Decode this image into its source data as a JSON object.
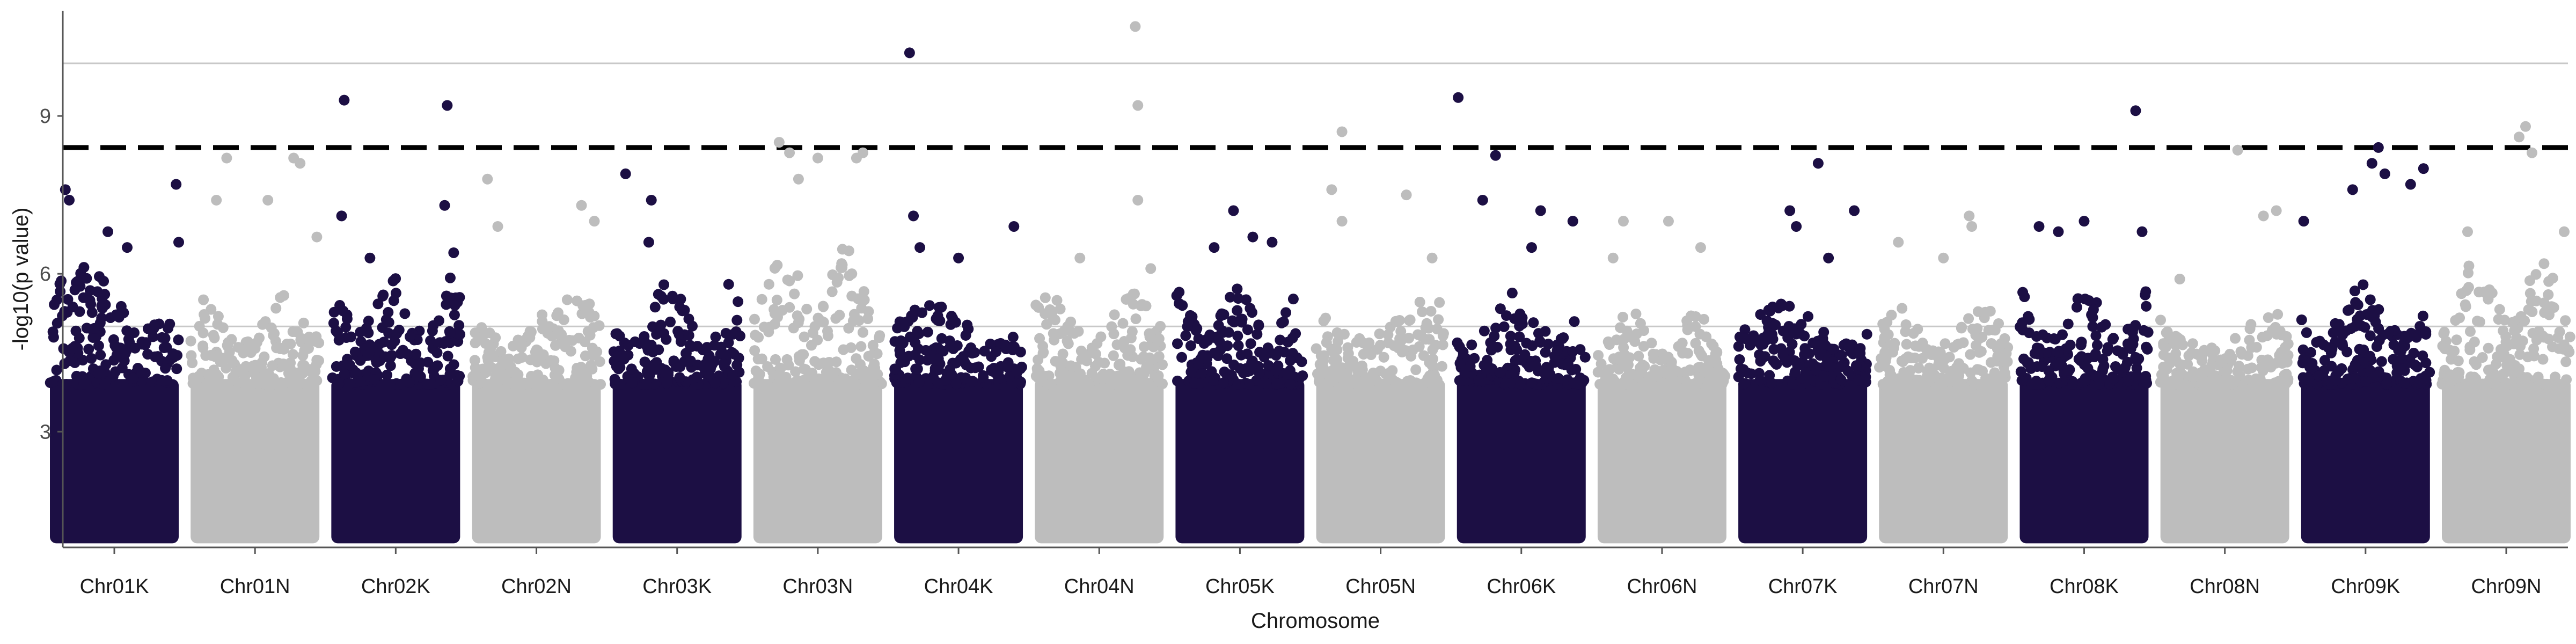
{
  "chart_data": {
    "type": "scatter",
    "subtype": "manhattan",
    "title": "",
    "xlabel": "Chromosome",
    "ylabel": "-log10(p value)",
    "ylim": [
      0.8,
      11.0
    ],
    "yticks": [
      3,
      6,
      9
    ],
    "grid": false,
    "legend": "none",
    "reference_lines": [
      {
        "kind": "significance-threshold",
        "y": 8.4,
        "style": "dashed",
        "color": "#000000"
      },
      {
        "kind": "horizontal-line",
        "y": 10.0,
        "style": "solid",
        "color": "#c8c8c8"
      },
      {
        "kind": "horizontal-line",
        "y": 5.0,
        "style": "solid",
        "color": "#c8c8c8"
      }
    ],
    "colors": {
      "K": "#1c0f44",
      "N": "#bdbdbd"
    },
    "categories": [
      "Chr01K",
      "Chr01N",
      "Chr02K",
      "Chr02N",
      "Chr03K",
      "Chr03N",
      "Chr04K",
      "Chr04N",
      "Chr05K",
      "Chr05N",
      "Chr06K",
      "Chr06N",
      "Chr07K",
      "Chr07N",
      "Chr08K",
      "Chr08N",
      "Chr09K",
      "Chr09N"
    ],
    "series": [
      {
        "chromosome": "Chr01K",
        "bulk_max": 6.2,
        "peaks": [
          [
            0.12,
            7.6
          ],
          [
            0.15,
            7.4
          ],
          [
            0.45,
            6.8
          ],
          [
            0.98,
            7.7
          ],
          [
            1.0,
            6.6
          ],
          [
            0.6,
            6.5
          ]
        ]
      },
      {
        "chromosome": "Chr01N",
        "bulk_max": 5.6,
        "peaks": [
          [
            0.28,
            8.2
          ],
          [
            0.2,
            7.4
          ],
          [
            0.6,
            7.4
          ],
          [
            0.8,
            8.2
          ],
          [
            0.85,
            8.1
          ],
          [
            0.98,
            6.7
          ]
        ]
      },
      {
        "chromosome": "Chr02K",
        "bulk_max": 6.0,
        "peaks": [
          [
            0.1,
            9.3
          ],
          [
            0.08,
            7.1
          ],
          [
            0.3,
            6.3
          ],
          [
            0.9,
            9.2
          ],
          [
            0.88,
            7.3
          ],
          [
            0.95,
            6.4
          ]
        ]
      },
      {
        "chromosome": "Chr02N",
        "bulk_max": 5.6,
        "peaks": [
          [
            0.12,
            7.8
          ],
          [
            0.2,
            6.9
          ],
          [
            0.85,
            7.3
          ],
          [
            0.95,
            7.0
          ]
        ]
      },
      {
        "chromosome": "Chr03K",
        "bulk_max": 5.8,
        "peaks": [
          [
            0.1,
            7.9
          ],
          [
            0.3,
            7.4
          ],
          [
            0.28,
            6.6
          ],
          [
            0.9,
            5.8
          ]
        ]
      },
      {
        "chromosome": "Chr03N",
        "bulk_max": 6.6,
        "peaks": [
          [
            0.2,
            8.5
          ],
          [
            0.28,
            8.3
          ],
          [
            0.5,
            8.2
          ],
          [
            0.8,
            8.2
          ],
          [
            0.85,
            8.3
          ],
          [
            0.35,
            7.8
          ]
        ]
      },
      {
        "chromosome": "Chr04K",
        "bulk_max": 5.5,
        "peaks": [
          [
            0.12,
            10.2
          ],
          [
            0.15,
            7.1
          ],
          [
            0.2,
            6.5
          ],
          [
            0.5,
            6.3
          ],
          [
            0.93,
            6.9
          ]
        ]
      },
      {
        "chromosome": "Chr04N",
        "bulk_max": 5.7,
        "peaks": [
          [
            0.78,
            10.7
          ],
          [
            0.8,
            9.2
          ],
          [
            0.8,
            7.4
          ],
          [
            0.35,
            6.3
          ],
          [
            0.9,
            6.1
          ]
        ]
      },
      {
        "chromosome": "Chr05K",
        "bulk_max": 5.8,
        "peaks": [
          [
            0.45,
            7.2
          ],
          [
            0.6,
            6.7
          ],
          [
            0.75,
            6.6
          ],
          [
            0.3,
            6.5
          ]
        ]
      },
      {
        "chromosome": "Chr05N",
        "bulk_max": 5.7,
        "peaks": [
          [
            0.2,
            8.7
          ],
          [
            0.12,
            7.6
          ],
          [
            0.2,
            7.0
          ],
          [
            0.7,
            7.5
          ],
          [
            0.9,
            6.3
          ]
        ]
      },
      {
        "chromosome": "Chr06K",
        "bulk_max": 5.7,
        "peaks": [
          [
            0.01,
            9.35
          ],
          [
            0.3,
            8.25
          ],
          [
            0.2,
            7.4
          ],
          [
            0.65,
            7.2
          ],
          [
            0.58,
            6.5
          ],
          [
            0.9,
            7.0
          ]
        ]
      },
      {
        "chromosome": "Chr06N",
        "bulk_max": 5.3,
        "peaks": [
          [
            0.2,
            7.0
          ],
          [
            0.55,
            7.0
          ],
          [
            0.8,
            6.5
          ],
          [
            0.12,
            6.3
          ]
        ]
      },
      {
        "chromosome": "Chr07K",
        "bulk_max": 5.5,
        "peaks": [
          [
            0.4,
            7.2
          ],
          [
            0.45,
            6.9
          ],
          [
            0.62,
            8.1
          ],
          [
            0.9,
            7.2
          ],
          [
            0.7,
            6.3
          ]
        ]
      },
      {
        "chromosome": "Chr07N",
        "bulk_max": 5.4,
        "peaks": [
          [
            0.15,
            6.6
          ],
          [
            0.7,
            7.1
          ],
          [
            0.72,
            6.9
          ],
          [
            0.5,
            6.3
          ]
        ]
      },
      {
        "chromosome": "Chr08K",
        "bulk_max": 5.7,
        "peaks": [
          [
            0.9,
            9.1
          ],
          [
            0.15,
            6.9
          ],
          [
            0.3,
            6.8
          ],
          [
            0.5,
            7.0
          ],
          [
            0.95,
            6.8
          ]
        ]
      },
      {
        "chromosome": "Chr08N",
        "bulk_max": 5.3,
        "peaks": [
          [
            0.6,
            8.35
          ],
          [
            0.8,
            7.1
          ],
          [
            0.9,
            7.2
          ],
          [
            0.15,
            5.9
          ]
        ]
      },
      {
        "chromosome": "Chr09K",
        "bulk_max": 5.8,
        "peaks": [
          [
            0.6,
            8.4
          ],
          [
            0.55,
            8.1
          ],
          [
            0.4,
            7.6
          ],
          [
            0.65,
            7.9
          ],
          [
            0.85,
            7.7
          ],
          [
            0.95,
            8.0
          ],
          [
            0.02,
            7.0
          ]
        ]
      },
      {
        "chromosome": "Chr09N",
        "bulk_max": 6.4,
        "peaks": [
          [
            0.65,
            8.8
          ],
          [
            0.6,
            8.6
          ],
          [
            0.7,
            8.3
          ],
          [
            0.2,
            6.8
          ],
          [
            0.95,
            6.8
          ]
        ]
      }
    ]
  }
}
